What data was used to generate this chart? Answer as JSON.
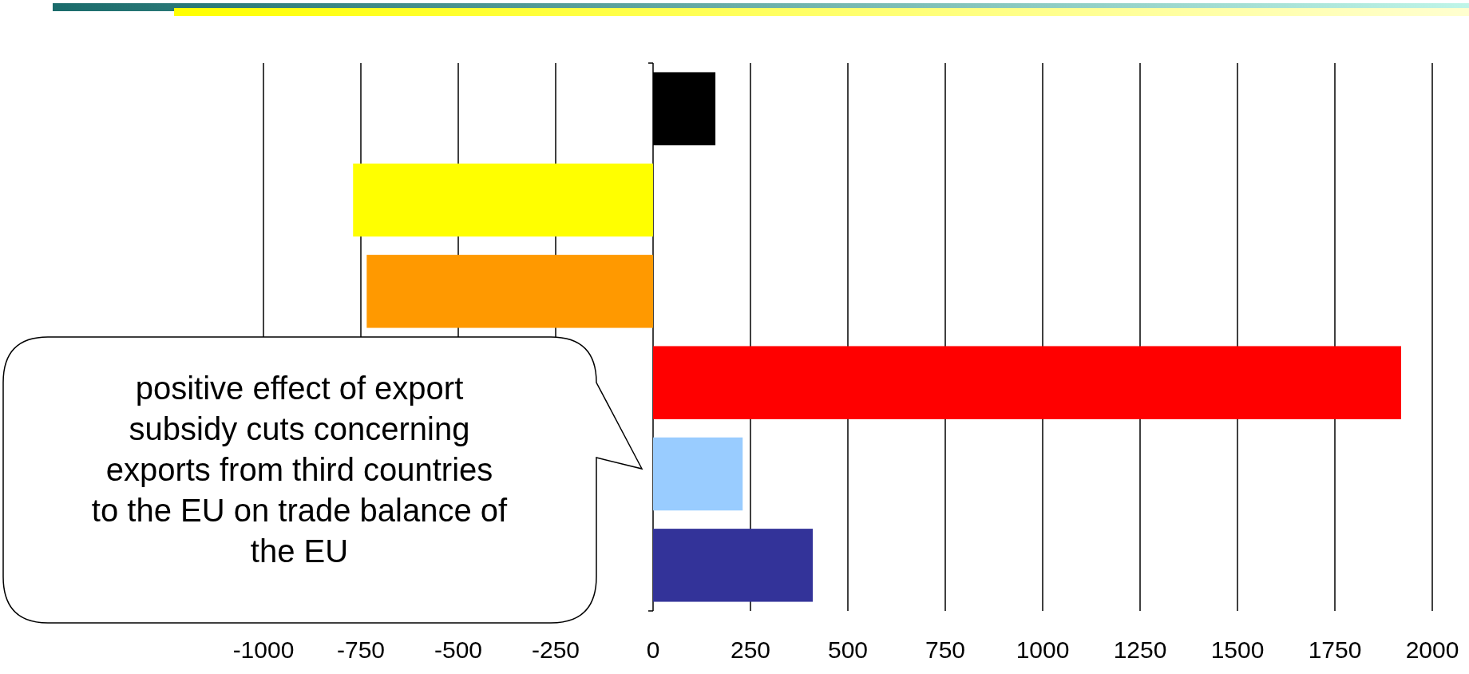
{
  "chart_data": {
    "type": "bar",
    "orientation": "horizontal",
    "categories": [
      null,
      null,
      null,
      null,
      null,
      null
    ],
    "values": [
      160,
      -770,
      -735,
      1920,
      230,
      410
    ],
    "colors": [
      "#000000",
      "#ffff00",
      "#ff9900",
      "#ff0000",
      "#99ccff",
      "#333399"
    ],
    "xlim": [
      -1000,
      2000
    ],
    "xticks": [
      -1000,
      -750,
      -500,
      -250,
      0,
      250,
      500,
      750,
      1000,
      1250,
      1500,
      1750,
      2000
    ],
    "grid": "x",
    "annotations": [
      "positive effect of export subsidy cuts concerning exports from third countries to the EU on trade balance of the EU"
    ]
  }
}
